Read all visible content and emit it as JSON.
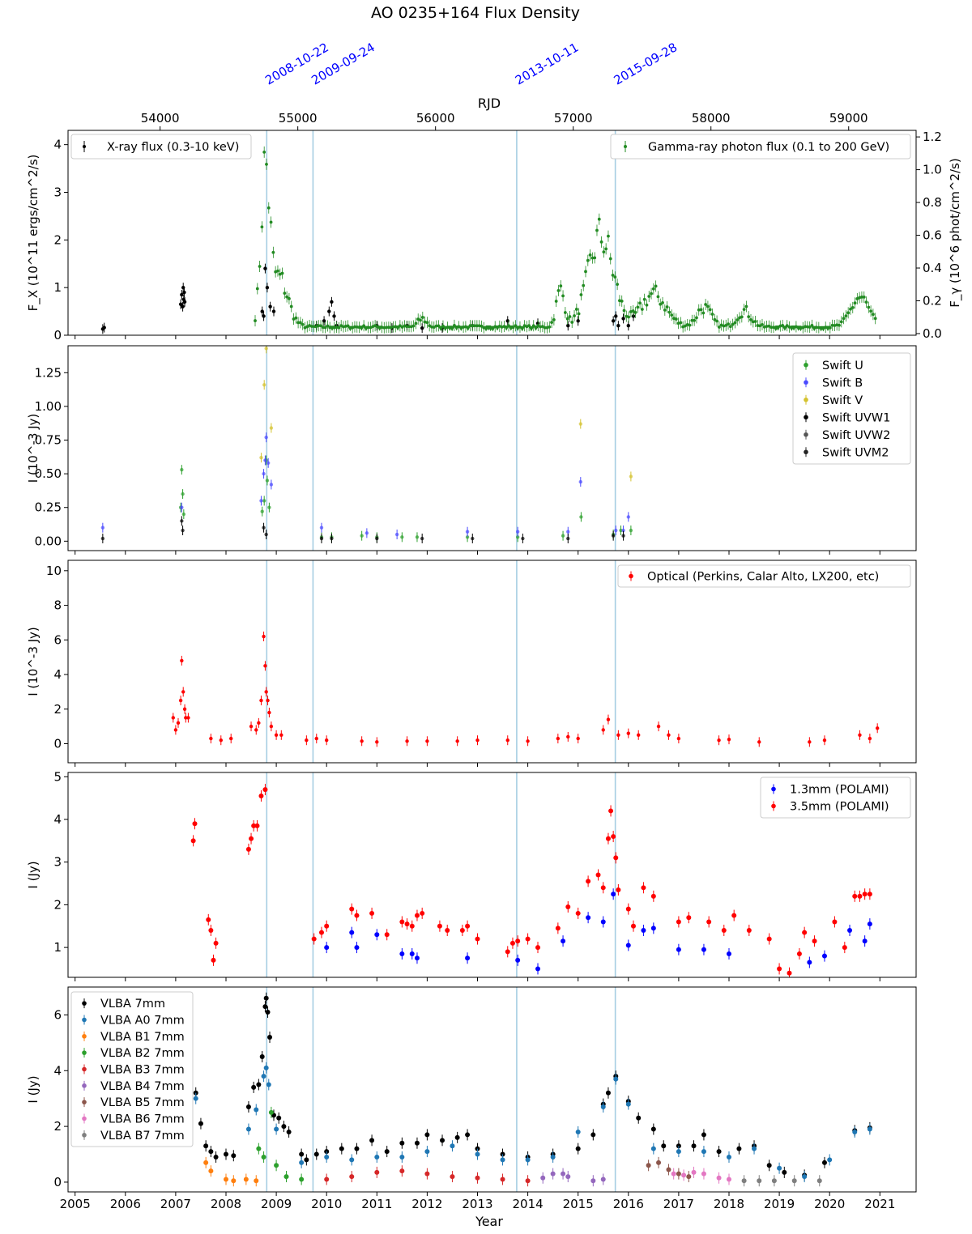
{
  "title": "AO 0235+164 Flux Density",
  "top_axis_label": "RJD",
  "top_ticks": [
    54000,
    55000,
    56000,
    57000,
    58000,
    59000
  ],
  "x_axis_label": "Year",
  "x_ticks": [
    "2005",
    "2006",
    "2007",
    "2008",
    "2009",
    "2010",
    "2011",
    "2012",
    "2013",
    "2014",
    "2015",
    "2016",
    "2017",
    "2018",
    "2019",
    "2020",
    "2021"
  ],
  "colors": {
    "vline": "#a6cee3",
    "event_label": "#0000ff"
  },
  "event_lines": [
    {
      "date": "2008-10-22",
      "year": 2008.81
    },
    {
      "date": "2009-09-24",
      "year": 2009.73
    },
    {
      "date": "2013-10-11",
      "year": 2013.78
    },
    {
      "date": "2015-09-28",
      "year": 2015.74
    }
  ],
  "chart_data": [
    {
      "type": "scatter",
      "panel": "xray-gamma",
      "ylabel": "F_X (10^11 ergs/cm^2/s)",
      "ylabel_right": "F_γ (10^6 phot/cm^2/s)",
      "ylim": [
        0,
        4.3
      ],
      "yticks": [
        0,
        1,
        2,
        3,
        4
      ],
      "ylim_right": [
        -0.01,
        1.24
      ],
      "yticks_right": [
        "0.0",
        "0.2",
        "0.4",
        "0.6",
        "0.8",
        "1.0",
        "1.2"
      ],
      "legend_left": "X-ray flux (0.3-10 keV)",
      "legend_right": "Gamma-ray photon flux (0.1 to 200 GeV)",
      "series": [
        {
          "name": "X-ray flux (0.3-10 keV)",
          "color": "#000000",
          "axis": "left",
          "x": [
            2005.55,
            2005.58,
            2007.1,
            2007.12,
            2007.14,
            2007.15,
            2007.16,
            2007.17,
            2007.18,
            2008.72,
            2008.75,
            2008.78,
            2008.82,
            2008.88,
            2008.95,
            2009.8,
            2009.95,
            2010.05,
            2010.1,
            2010.15,
            2010.2,
            2011.0,
            2011.3,
            2011.6,
            2011.9,
            2012.3,
            2012.9,
            2013.6,
            2014.2,
            2014.8,
            2015.0,
            2015.7,
            2015.75,
            2015.8,
            2015.9,
            2016.0,
            2016.1
          ],
          "y": [
            0.13,
            0.16,
            0.65,
            0.85,
            0.6,
            1.0,
            0.75,
            0.9,
            0.7,
            0.5,
            0.4,
            1.4,
            1.0,
            0.6,
            0.5,
            0.2,
            0.3,
            0.5,
            0.7,
            0.4,
            0.2,
            0.2,
            0.15,
            0.2,
            0.15,
            0.15,
            0.2,
            0.3,
            0.25,
            0.2,
            0.3,
            0.3,
            0.4,
            0.2,
            0.35,
            0.2,
            0.4
          ]
        },
        {
          "name": "Gamma-ray photon flux (0.1 to 200 GeV)",
          "color": "#228b22",
          "axis": "right"
        }
      ]
    },
    {
      "type": "scatter",
      "panel": "swift-uvot",
      "ylabel": "I (10^-3 Jy)",
      "ylim": [
        -0.07,
        1.45
      ],
      "yticks": [
        "0.00",
        "0.25",
        "0.50",
        "0.75",
        "1.00",
        "1.25"
      ],
      "series": [
        {
          "name": "Swift U",
          "color": "#2ca02c",
          "x": [
            2007.1,
            2007.12,
            2007.14,
            2007.16,
            2008.72,
            2008.76,
            2008.8,
            2008.82,
            2008.86,
            2009.9,
            2010.1,
            2010.7,
            2011.0,
            2011.5,
            2011.8,
            2012.8,
            2013.8,
            2014.7,
            2015.06,
            2015.7,
            2015.85,
            2016.05
          ],
          "y": [
            0.25,
            0.53,
            0.35,
            0.2,
            0.22,
            0.3,
            0.6,
            0.45,
            0.25,
            0.03,
            0.03,
            0.04,
            0.03,
            0.03,
            0.03,
            0.03,
            0.03,
            0.04,
            0.18,
            0.05,
            0.08,
            0.08
          ]
        },
        {
          "name": "Swift B",
          "color": "#4a4aff",
          "x": [
            2005.55,
            2007.12,
            2008.7,
            2008.75,
            2008.78,
            2008.8,
            2008.84,
            2008.9,
            2009.9,
            2010.8,
            2011.4,
            2012.8,
            2013.8,
            2014.8,
            2015.05,
            2015.75,
            2015.9,
            2016.0
          ],
          "y": [
            0.1,
            0.25,
            0.3,
            0.5,
            0.6,
            0.77,
            0.58,
            0.42,
            0.1,
            0.06,
            0.05,
            0.07,
            0.07,
            0.07,
            0.44,
            0.08,
            0.08,
            0.18
          ]
        },
        {
          "name": "Swift V",
          "color": "#d4c22e",
          "x": [
            2008.7,
            2008.76,
            2008.8,
            2008.9,
            2015.05,
            2016.05
          ],
          "y": [
            0.62,
            1.16,
            1.43,
            0.84,
            0.87,
            0.48
          ]
        },
        {
          "name": "Swift UVW1",
          "color": "#000000",
          "x": [
            2005.55,
            2007.12,
            2007.14,
            2008.75,
            2008.8,
            2009.9,
            2010.1,
            2011.0,
            2011.9,
            2012.9,
            2013.9,
            2014.8,
            2015.7,
            2015.9
          ],
          "y": [
            0.02,
            0.15,
            0.08,
            0.1,
            0.05,
            0.02,
            0.02,
            0.02,
            0.02,
            0.02,
            0.02,
            0.02,
            0.04,
            0.04
          ]
        },
        {
          "name": "Swift UVW2",
          "color": "#555555"
        },
        {
          "name": "Swift UVM2",
          "color": "#222222"
        }
      ]
    },
    {
      "type": "scatter",
      "panel": "optical",
      "ylabel": "I (10^-3 Jy)",
      "ylim": [
        -1.1,
        10.6
      ],
      "yticks": [
        0,
        2,
        4,
        6,
        8,
        10
      ],
      "series": [
        {
          "name": "Optical (Perkins, Calar Alto, LX200, etc)",
          "color": "#ff0000",
          "x": [
            2006.95,
            2007.0,
            2007.05,
            2007.1,
            2007.12,
            2007.15,
            2007.18,
            2007.2,
            2007.25,
            2007.7,
            2007.9,
            2008.1,
            2008.5,
            2008.6,
            2008.65,
            2008.7,
            2008.75,
            2008.78,
            2008.8,
            2008.83,
            2008.86,
            2008.9,
            2009.0,
            2009.1,
            2009.6,
            2009.8,
            2010.0,
            2010.7,
            2011.0,
            2011.6,
            2012.0,
            2012.6,
            2013.0,
            2013.6,
            2014.0,
            2014.6,
            2014.8,
            2015.0,
            2015.5,
            2015.6,
            2015.8,
            2016.0,
            2016.2,
            2016.6,
            2016.8,
            2017.0,
            2017.8,
            2018.0,
            2018.6,
            2019.6,
            2019.9,
            2020.6,
            2020.8,
            2020.95
          ],
          "y": [
            1.5,
            0.8,
            1.2,
            2.5,
            4.8,
            3.0,
            2.0,
            1.5,
            1.5,
            0.3,
            0.2,
            0.3,
            1.0,
            0.8,
            1.2,
            2.5,
            6.2,
            4.5,
            3.0,
            2.5,
            1.8,
            1.0,
            0.5,
            0.5,
            0.2,
            0.3,
            0.2,
            0.15,
            0.1,
            0.15,
            0.15,
            0.15,
            0.2,
            0.2,
            0.15,
            0.3,
            0.4,
            0.3,
            0.8,
            1.4,
            0.5,
            0.6,
            0.5,
            1.0,
            0.5,
            0.3,
            0.2,
            0.25,
            0.1,
            0.1,
            0.2,
            0.5,
            0.3,
            0.9
          ]
        }
      ]
    },
    {
      "type": "scatter",
      "panel": "mm-polami",
      "ylabel": "I (Jy)",
      "ylim": [
        0.3,
        5.1
      ],
      "yticks": [
        1,
        2,
        3,
        4,
        5
      ],
      "series": [
        {
          "name": "1.3mm (POLAMI)",
          "color": "#0000ff",
          "x": [
            2010.0,
            2010.5,
            2010.6,
            2011.0,
            2011.5,
            2011.7,
            2011.8,
            2012.8,
            2013.8,
            2014.2,
            2014.7,
            2015.2,
            2015.5,
            2015.7,
            2016.0,
            2016.3,
            2016.5,
            2017.0,
            2017.5,
            2018.0,
            2019.6,
            2019.9,
            2020.4,
            2020.7,
            2020.8
          ],
          "y": [
            1.0,
            1.35,
            1.0,
            1.3,
            0.85,
            0.85,
            0.75,
            0.75,
            0.7,
            0.5,
            1.15,
            1.7,
            1.6,
            2.25,
            1.05,
            1.4,
            1.45,
            0.95,
            0.95,
            0.85,
            0.65,
            0.8,
            1.4,
            1.15,
            1.55
          ]
        },
        {
          "name": "3.5mm (POLAMI)",
          "color": "#ff0000",
          "x": [
            2007.35,
            2007.38,
            2007.65,
            2007.7,
            2007.75,
            2007.8,
            2008.45,
            2008.5,
            2008.55,
            2008.62,
            2008.7,
            2008.78,
            2009.75,
            2009.9,
            2010.0,
            2010.5,
            2010.6,
            2010.9,
            2011.2,
            2011.5,
            2011.6,
            2011.7,
            2011.8,
            2011.9,
            2012.25,
            2012.4,
            2012.7,
            2012.8,
            2013.0,
            2013.6,
            2013.7,
            2013.8,
            2014.0,
            2014.2,
            2014.6,
            2014.8,
            2015.0,
            2015.2,
            2015.4,
            2015.5,
            2015.6,
            2015.65,
            2015.7,
            2015.75,
            2015.8,
            2016.0,
            2016.1,
            2016.3,
            2016.5,
            2017.0,
            2017.2,
            2017.6,
            2017.9,
            2018.1,
            2018.4,
            2018.8,
            2019.0,
            2019.2,
            2019.4,
            2019.5,
            2019.7,
            2020.1,
            2020.3,
            2020.5,
            2020.6,
            2020.7,
            2020.8
          ],
          "y": [
            3.5,
            3.9,
            1.65,
            1.4,
            0.7,
            1.1,
            3.3,
            3.55,
            3.85,
            3.85,
            4.55,
            4.7,
            1.2,
            1.35,
            1.5,
            1.9,
            1.75,
            1.8,
            1.3,
            1.6,
            1.55,
            1.5,
            1.75,
            1.8,
            1.5,
            1.4,
            1.4,
            1.5,
            1.2,
            0.9,
            1.1,
            1.15,
            1.2,
            1.0,
            1.45,
            1.95,
            1.8,
            2.55,
            2.7,
            2.4,
            3.55,
            4.2,
            3.6,
            3.1,
            2.35,
            1.9,
            1.5,
            2.4,
            2.2,
            1.6,
            1.7,
            1.6,
            1.4,
            1.75,
            1.4,
            1.2,
            0.5,
            0.4,
            0.85,
            1.35,
            1.15,
            1.6,
            1.0,
            2.2,
            2.2,
            2.25,
            2.25
          ]
        }
      ]
    },
    {
      "type": "scatter",
      "panel": "vlba",
      "ylabel": "I (Jy)",
      "ylim": [
        -0.35,
        7.0
      ],
      "yticks": [
        0,
        2,
        4,
        6
      ],
      "series": [
        {
          "name": "VLBA 7mm",
          "color": "#000000",
          "x": [
            2007.4,
            2007.5,
            2007.6,
            2007.7,
            2007.8,
            2008.0,
            2008.15,
            2008.45,
            2008.55,
            2008.65,
            2008.72,
            2008.78,
            2008.8,
            2008.83,
            2008.87,
            2008.95,
            2009.05,
            2009.15,
            2009.25,
            2009.5,
            2009.6,
            2009.8,
            2010.0,
            2010.3,
            2010.6,
            2010.9,
            2011.2,
            2011.5,
            2011.8,
            2012.0,
            2012.3,
            2012.6,
            2012.8,
            2013.0,
            2013.5,
            2014.0,
            2014.5,
            2015.0,
            2015.3,
            2015.5,
            2015.6,
            2015.75,
            2016.0,
            2016.2,
            2016.5,
            2016.7,
            2017.0,
            2017.3,
            2017.5,
            2017.8,
            2018.2,
            2018.5,
            2018.8,
            2019.1,
            2019.5,
            2019.9,
            2020.5,
            2020.8
          ],
          "y": [
            3.2,
            2.1,
            1.3,
            1.1,
            0.9,
            1.0,
            0.95,
            2.7,
            3.4,
            3.5,
            4.5,
            6.3,
            6.6,
            6.1,
            5.2,
            2.4,
            2.3,
            2.0,
            1.8,
            1.0,
            0.8,
            1.0,
            1.1,
            1.2,
            1.2,
            1.5,
            1.1,
            1.4,
            1.4,
            1.7,
            1.5,
            1.6,
            1.7,
            1.2,
            1.0,
            0.9,
            1.0,
            1.2,
            1.7,
            2.8,
            3.2,
            3.8,
            2.9,
            2.3,
            1.9,
            1.3,
            1.3,
            1.3,
            1.7,
            1.1,
            1.2,
            1.3,
            0.6,
            0.35,
            0.25,
            0.7,
            1.85,
            1.95
          ]
        },
        {
          "name": "VLBA A0 7mm",
          "color": "#1f77b4",
          "x": [
            2007.4,
            2008.45,
            2008.6,
            2008.75,
            2008.8,
            2008.85,
            2009.0,
            2009.5,
            2010.0,
            2010.5,
            2011.0,
            2011.5,
            2012.0,
            2012.5,
            2013.0,
            2013.5,
            2014.0,
            2014.5,
            2015.0,
            2015.5,
            2015.75,
            2016.0,
            2016.5,
            2017.0,
            2017.5,
            2018.0,
            2018.5,
            2019.0,
            2019.5,
            2020.0,
            2020.5,
            2020.8
          ],
          "y": [
            3.0,
            1.9,
            2.6,
            3.8,
            4.1,
            3.5,
            1.9,
            0.7,
            0.9,
            0.8,
            0.9,
            0.9,
            1.1,
            1.3,
            1.0,
            0.8,
            0.8,
            0.9,
            1.8,
            2.7,
            3.7,
            2.8,
            1.2,
            1.1,
            1.1,
            0.9,
            1.2,
            0.5,
            0.2,
            0.8,
            1.8,
            1.9
          ]
        },
        {
          "name": "VLBA B1 7mm",
          "color": "#ff7f0e",
          "x": [
            2007.6,
            2007.7,
            2008.0,
            2008.15,
            2008.4,
            2008.6
          ],
          "y": [
            0.7,
            0.4,
            0.1,
            0.05,
            0.1,
            0.05
          ]
        },
        {
          "name": "VLBA B2 7mm",
          "color": "#2ca02c",
          "x": [
            2008.65,
            2008.75,
            2008.9,
            2009.0,
            2009.2,
            2009.5
          ],
          "y": [
            1.2,
            0.9,
            2.5,
            0.6,
            0.2,
            0.1
          ]
        },
        {
          "name": "VLBA B3 7mm",
          "color": "#d62728",
          "x": [
            2010.0,
            2010.5,
            2011.0,
            2011.5,
            2012.0,
            2012.5,
            2013.0,
            2013.5,
            2014.0
          ],
          "y": [
            0.1,
            0.2,
            0.35,
            0.4,
            0.3,
            0.2,
            0.15,
            0.1,
            0.05
          ]
        },
        {
          "name": "VLBA B4 7mm",
          "color": "#9467bd",
          "x": [
            2014.3,
            2014.5,
            2014.7,
            2014.8,
            2015.3,
            2015.5
          ],
          "y": [
            0.15,
            0.3,
            0.3,
            0.2,
            0.05,
            0.1
          ]
        },
        {
          "name": "VLBA B5 7mm",
          "color": "#8c564b",
          "x": [
            2016.4,
            2016.6,
            2016.8,
            2017.0,
            2017.2
          ],
          "y": [
            0.6,
            0.7,
            0.45,
            0.3,
            0.2
          ]
        },
        {
          "name": "VLBA B6 7mm",
          "color": "#e377c2",
          "x": [
            2016.9,
            2017.1,
            2017.3,
            2017.5,
            2017.8,
            2018.0
          ],
          "y": [
            0.3,
            0.25,
            0.35,
            0.3,
            0.15,
            0.1
          ]
        },
        {
          "name": "VLBA B7 7mm",
          "color": "#7f7f7f",
          "x": [
            2018.3,
            2018.6,
            2018.9,
            2019.3,
            2019.8
          ],
          "y": [
            0.05,
            0.05,
            0.05,
            0.05,
            0.05
          ]
        }
      ]
    }
  ]
}
